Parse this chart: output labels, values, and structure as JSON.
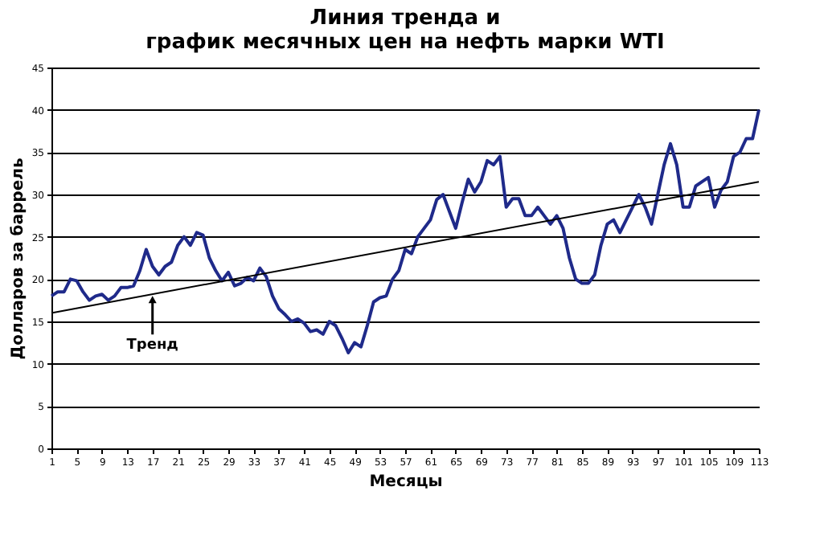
{
  "chart_data": {
    "type": "line",
    "title": "Линия тренда и\nграфик месячных цен на нефть марки WTI",
    "xlabel": "Месяцы",
    "ylabel": "Долларов за баррель",
    "xlim": [
      1,
      113
    ],
    "xticks": [
      1,
      5,
      9,
      13,
      17,
      21,
      25,
      29,
      33,
      37,
      41,
      45,
      49,
      53,
      57,
      61,
      65,
      69,
      73,
      77,
      81,
      85,
      89,
      93,
      97,
      101,
      105,
      109,
      113
    ],
    "ylim": [
      0,
      45
    ],
    "yticks": [
      0,
      5,
      10,
      15,
      20,
      25,
      30,
      35,
      40,
      45
    ],
    "grid": "y",
    "marker": "none",
    "line_style": "solid",
    "annotations": [
      {
        "text": "Тренд",
        "x": 17,
        "y": 18.2
      }
    ],
    "series": [
      {
        "color": "#1f2a8a",
        "x": [
          1,
          2,
          3,
          4,
          5,
          6,
          7,
          8,
          9,
          10,
          11,
          12,
          13,
          14,
          15,
          16,
          17,
          18,
          19,
          20,
          21,
          22,
          23,
          24,
          25,
          26,
          27,
          28,
          29,
          30,
          31,
          32,
          33,
          34,
          35,
          36,
          37,
          38,
          39,
          40,
          41,
          42,
          43,
          44,
          45,
          46,
          47,
          48,
          49,
          50,
          51,
          52,
          53,
          54,
          55,
          56,
          57,
          58,
          59,
          60,
          61,
          62,
          63,
          64,
          65,
          66,
          67,
          68,
          69,
          70,
          71,
          72,
          73,
          74,
          75,
          76,
          77,
          78,
          79,
          80,
          81,
          82,
          83,
          84,
          85,
          86,
          87,
          88,
          89,
          90,
          91,
          92,
          93,
          94,
          95,
          96,
          97,
          98,
          99,
          100,
          101,
          102,
          103,
          104,
          105,
          106,
          107,
          108,
          109,
          110,
          111,
          112,
          113
        ],
        "values": [
          18,
          18.5,
          18.5,
          20,
          19.8,
          18.5,
          17.5,
          18,
          18.2,
          17.5,
          18,
          19,
          19,
          19.2,
          21,
          23.5,
          21.5,
          20.5,
          21.5,
          22,
          24,
          25,
          24,
          25.5,
          25.2,
          22.5,
          21,
          19.8,
          20.8,
          19.2,
          19.5,
          20.2,
          19.8,
          21.3,
          20.3,
          18,
          16.5,
          15.8,
          15,
          15.3,
          14.8,
          13.8,
          14,
          13.5,
          15,
          14.5,
          13,
          11.3,
          12.5,
          12,
          14.5,
          17.3,
          17.8,
          18,
          20,
          21,
          23.5,
          23,
          25,
          26,
          27,
          29.4,
          30,
          28,
          26,
          29,
          31.8,
          30.3,
          31.5,
          34,
          33.5,
          34.5,
          28.5,
          29.5,
          29.5,
          27.5,
          27.5,
          28.5,
          27.5,
          26.5,
          27.5,
          26,
          22.5,
          20,
          19.5,
          19.5,
          20.5,
          24,
          26.5,
          27,
          25.5,
          27,
          28.5,
          30,
          28.5,
          26.5,
          30,
          33.5,
          36,
          33.5,
          28.5,
          28.5,
          31,
          31.5,
          32,
          28.5,
          30.5,
          31.5,
          34.5,
          35,
          36.6,
          36.6,
          40
        ]
      },
      {
        "color": "#000000",
        "x": [
          1,
          113
        ],
        "values": [
          16,
          31.5
        ]
      }
    ]
  }
}
